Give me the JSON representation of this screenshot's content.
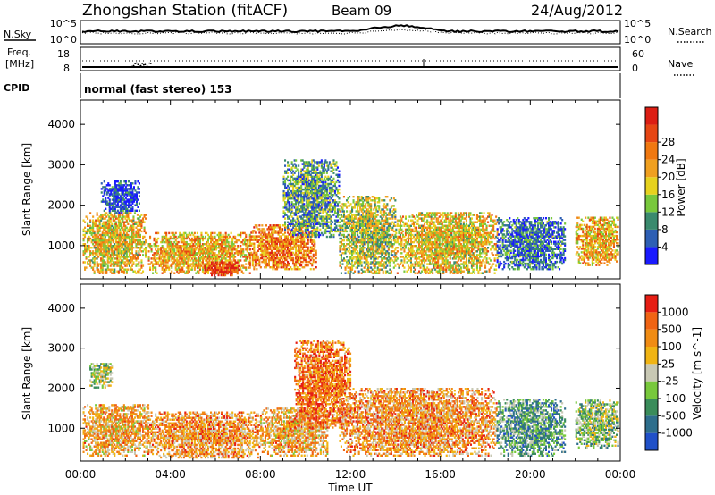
{
  "header": {
    "station": "Zhongshan Station (fitACF)",
    "beam": "Beam 09",
    "date": "24/Aug/2012"
  },
  "params": {
    "nsky_label": "N.Sky",
    "nsearch_label": "N.Search",
    "nsky_ticks": [
      "10^5",
      "10^0"
    ],
    "nsearch_ticks": [
      "10^5",
      "10^0"
    ],
    "freq_label": "Freq.",
    "freq_unit": "[MHz]",
    "freq_ticks": [
      "18",
      "8"
    ],
    "nave_label": "Nave",
    "nave_ticks": [
      "60",
      "0"
    ],
    "cpid_label": "CPID",
    "cpid_text": "normal (fast stereo) 153"
  },
  "x_axis": {
    "label": "Time UT",
    "ticks": [
      "00:00",
      "04:00",
      "08:00",
      "12:00",
      "16:00",
      "20:00",
      "00:00"
    ]
  },
  "chart_data": [
    {
      "type": "heatmap",
      "ylabel": "Slant Range [km]",
      "xlabel": "Time UT",
      "xlim": [
        0,
        24
      ],
      "ylim": [
        180,
        4600
      ],
      "yticks": [
        "1000",
        "2000",
        "3000",
        "4000"
      ],
      "colorbar": {
        "label": "Power [dB]",
        "ticks": [
          "4",
          "8",
          "12",
          "16",
          "20",
          "24",
          "28"
        ],
        "colors": [
          "#1a1aff",
          "#2e5fb4",
          "#3a8a6e",
          "#78c83c",
          "#e6d21e",
          "#f0a020",
          "#f07810",
          "#e64614",
          "#dc1e14"
        ]
      },
      "regions": [
        {
          "t0": 0.1,
          "t1": 2.9,
          "r0": 300,
          "r1": 1800,
          "level": 0.55
        },
        {
          "t0": 0.9,
          "t1": 2.6,
          "r0": 1800,
          "r1": 2600,
          "level": 0.1
        },
        {
          "t0": 3.0,
          "t1": 7.5,
          "r0": 300,
          "r1": 1300,
          "level": 0.6
        },
        {
          "t0": 5.5,
          "t1": 7.0,
          "r0": 250,
          "r1": 600,
          "level": 0.9
        },
        {
          "t0": 7.5,
          "t1": 10.5,
          "r0": 400,
          "r1": 1500,
          "level": 0.7
        },
        {
          "t0": 9.0,
          "t1": 11.5,
          "r0": 1200,
          "r1": 3100,
          "level": 0.3
        },
        {
          "t0": 11.5,
          "t1": 14.0,
          "r0": 300,
          "r1": 2200,
          "level": 0.45
        },
        {
          "t0": 14.0,
          "t1": 18.5,
          "r0": 300,
          "r1": 1800,
          "level": 0.55
        },
        {
          "t0": 18.5,
          "t1": 21.5,
          "r0": 400,
          "r1": 1700,
          "level": 0.2
        },
        {
          "t0": 22.0,
          "t1": 23.9,
          "r0": 500,
          "r1": 1700,
          "level": 0.6
        }
      ]
    },
    {
      "type": "heatmap",
      "ylabel": "Slant Range [km]",
      "xlabel": "Time UT",
      "xlim": [
        0,
        24
      ],
      "ylim": [
        180,
        4600
      ],
      "yticks": [
        "1000",
        "2000",
        "3000",
        "4000"
      ],
      "colorbar": {
        "label": "Velocity [m s^-1]",
        "ticks": [
          "1000",
          "500",
          "100",
          "25",
          "-25",
          "-100",
          "-500",
          "-1000"
        ],
        "colors": [
          "#2050c8",
          "#2e6e8c",
          "#3a8c5a",
          "#78c83c",
          "#c8c8b4",
          "#f0b414",
          "#f08c14",
          "#f06414",
          "#e61e14"
        ]
      },
      "regions": [
        {
          "t0": 0.1,
          "t1": 3.0,
          "r0": 300,
          "r1": 1600,
          "level": 0.65
        },
        {
          "t0": 0.4,
          "t1": 1.4,
          "r0": 2000,
          "r1": 2600,
          "level": 0.45
        },
        {
          "t0": 3.0,
          "t1": 8.0,
          "r0": 250,
          "r1": 1400,
          "level": 0.7
        },
        {
          "t0": 8.0,
          "t1": 11.0,
          "r0": 300,
          "r1": 1500,
          "level": 0.65
        },
        {
          "t0": 9.5,
          "t1": 12.0,
          "r0": 1000,
          "r1": 3200,
          "level": 0.8
        },
        {
          "t0": 11.5,
          "t1": 18.5,
          "r0": 300,
          "r1": 2000,
          "level": 0.7
        },
        {
          "t0": 18.5,
          "t1": 21.5,
          "r0": 300,
          "r1": 1700,
          "level": 0.3
        },
        {
          "t0": 22.0,
          "t1": 23.9,
          "r0": 500,
          "r1": 1700,
          "level": 0.4
        }
      ]
    }
  ]
}
